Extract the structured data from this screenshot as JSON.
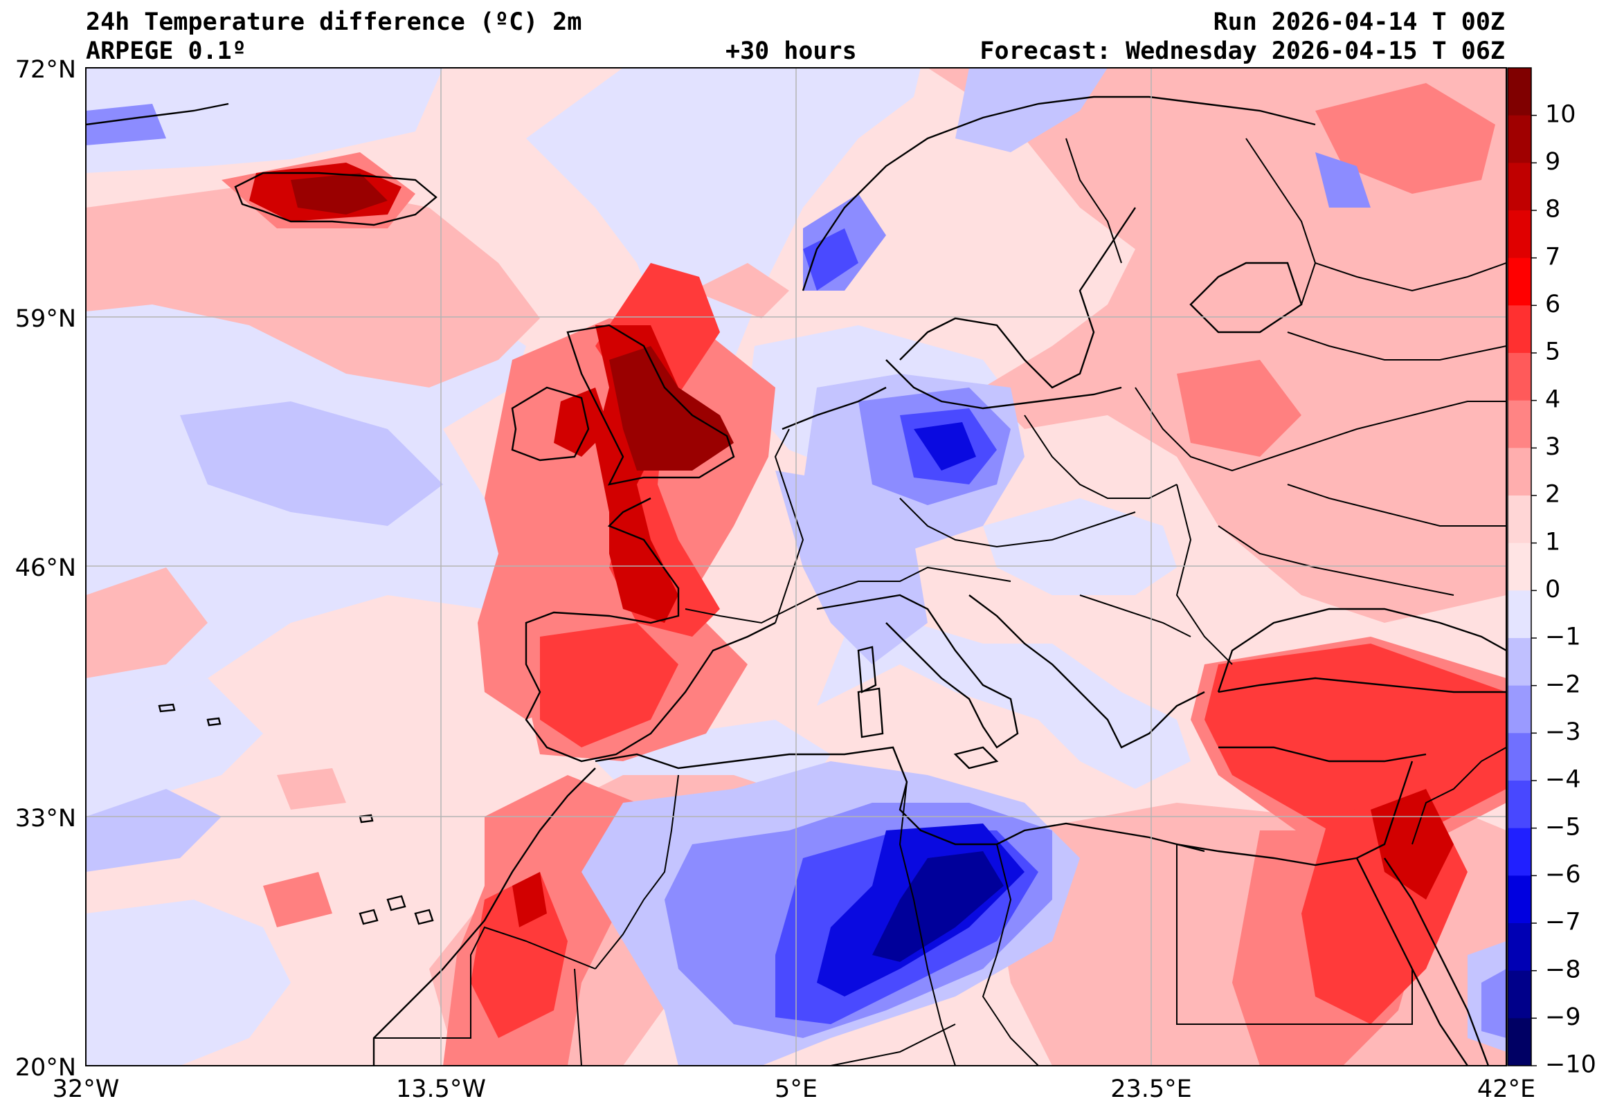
{
  "header": {
    "title": "24h Temperature difference (ºC) 2m",
    "model": "ARPEGE 0.1º",
    "run": "Run 2026-04-14 T 00Z",
    "lead": "+30 hours",
    "forecast": "Forecast: Wednesday 2026-04-15 T 06Z"
  },
  "axes": {
    "x_ticks": [
      "32°W",
      "13.5°W",
      "5°E",
      "23.5°E",
      "42°E"
    ],
    "y_ticks": [
      "72°N",
      "59°N",
      "46°N",
      "33°N",
      "20°N"
    ]
  },
  "colorbar": {
    "labels": [
      "10",
      "9",
      "8",
      "7",
      "6",
      "5",
      "4",
      "3",
      "2",
      "1",
      "0",
      "−1",
      "−2",
      "−3",
      "−4",
      "−5",
      "−6",
      "−7",
      "−8",
      "−9",
      "−10"
    ],
    "colors": [
      "#800000",
      "#a00000",
      "#c00000",
      "#e00000",
      "#ff0000",
      "#ff3030",
      "#ff5a5a",
      "#ff8484",
      "#ffaeae",
      "#ffd6d6",
      "#ffe4e4",
      "#e4e4ff",
      "#c0c0ff",
      "#9a9aff",
      "#7070ff",
      "#4848ff",
      "#2020ff",
      "#0000e0",
      "#0000b4",
      "#00008a",
      "#000064"
    ]
  },
  "map": {
    "colors": {
      "sea_warm": "#ffe0e0",
      "sea_cool": "#e2e2ff",
      "warm1": "#ffb8b8",
      "warm2": "#ff8080",
      "warm3": "#ff3a3a",
      "warm4": "#d20000",
      "warm5": "#9a0000",
      "cool1": "#c4c4ff",
      "cool2": "#8c8cff",
      "cool3": "#4a4aff",
      "cool4": "#0a0ae0",
      "cool5": "#00009a",
      "grid": "#b4b4b4",
      "coast": "#000000"
    }
  }
}
